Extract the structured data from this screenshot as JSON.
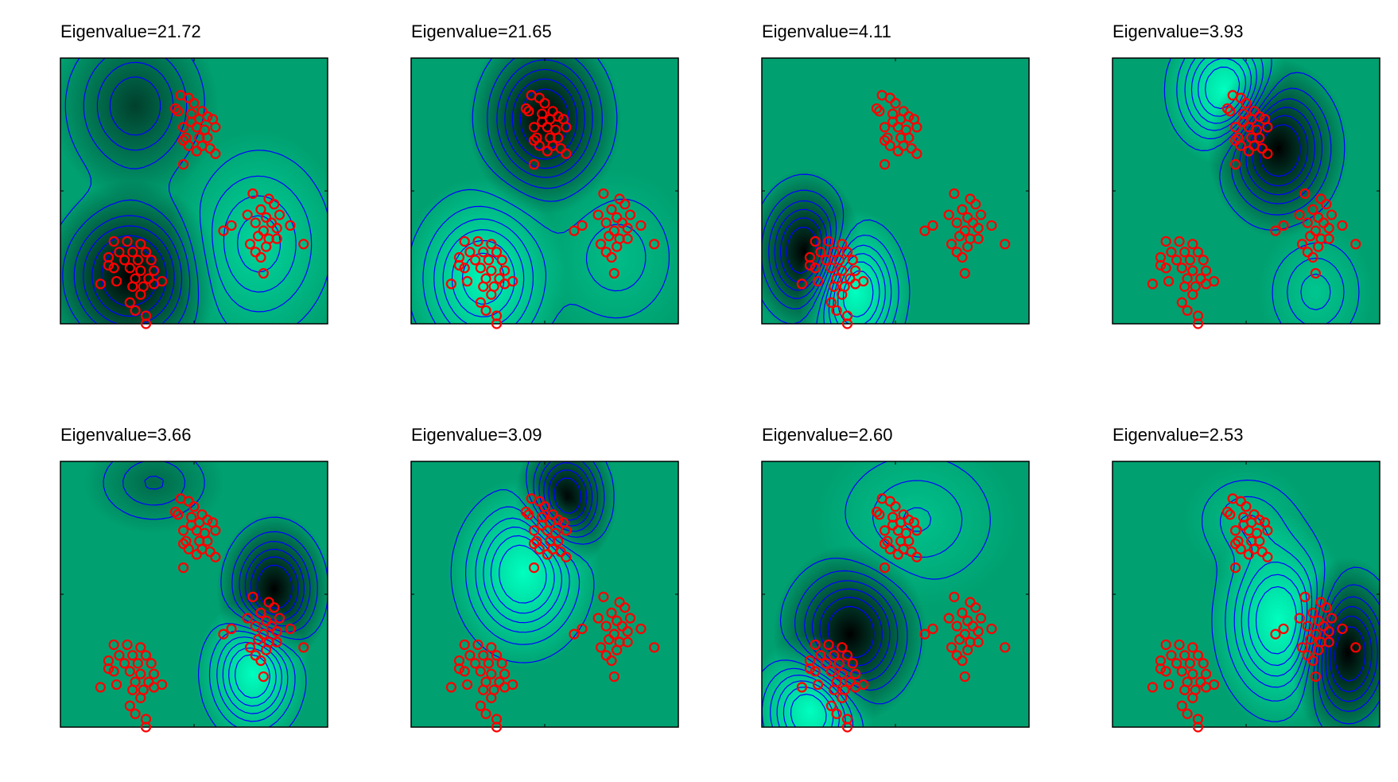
{
  "figure": {
    "background": "#ffffff",
    "colormap": [
      "#000000",
      "#00a070",
      "#00ffc0"
    ],
    "contour_color": "#0000ff",
    "marker_color": "#ff0000"
  },
  "chart_data": [
    {
      "type": "heatmap",
      "title": "Eigenvalue=21.72",
      "eigenvalue": 21.72,
      "xlim": [
        0,
        1
      ],
      "ylim": [
        0,
        1
      ],
      "grid": false,
      "field": [
        {
          "x": 0.28,
          "y": 0.82,
          "a": -0.6,
          "sx": 0.13,
          "sy": 0.15
        },
        {
          "x": 0.26,
          "y": 0.18,
          "a": -1.0,
          "sx": 0.14,
          "sy": 0.15
        },
        {
          "x": 0.74,
          "y": 0.3,
          "a": 0.55,
          "sx": 0.14,
          "sy": 0.18
        }
      ]
    },
    {
      "type": "heatmap",
      "title": "Eigenvalue=21.65",
      "eigenvalue": 21.65,
      "xlim": [
        0,
        1
      ],
      "ylim": [
        0,
        1
      ],
      "grid": false,
      "field": [
        {
          "x": 0.5,
          "y": 0.77,
          "a": -1.0,
          "sx": 0.12,
          "sy": 0.15
        },
        {
          "x": 0.27,
          "y": 0.17,
          "a": 0.9,
          "sx": 0.13,
          "sy": 0.16
        },
        {
          "x": 0.77,
          "y": 0.25,
          "a": 0.3,
          "sx": 0.12,
          "sy": 0.14
        }
      ]
    },
    {
      "type": "heatmap",
      "title": "Eigenvalue=4.11",
      "eigenvalue": 4.11,
      "xlim": [
        0,
        1
      ],
      "ylim": [
        0,
        1
      ],
      "grid": false,
      "field": [
        {
          "x": 0.16,
          "y": 0.27,
          "a": -1.0,
          "sx": 0.09,
          "sy": 0.13
        },
        {
          "x": 0.35,
          "y": 0.12,
          "a": 1.0,
          "sx": 0.09,
          "sy": 0.13
        }
      ]
    },
    {
      "type": "heatmap",
      "title": "Eigenvalue=3.93",
      "eigenvalue": 3.93,
      "xlim": [
        0,
        1
      ],
      "ylim": [
        0,
        1
      ],
      "grid": false,
      "field": [
        {
          "x": 0.42,
          "y": 0.88,
          "a": 1.0,
          "sx": 0.1,
          "sy": 0.12
        },
        {
          "x": 0.62,
          "y": 0.66,
          "a": -1.0,
          "sx": 0.11,
          "sy": 0.14
        },
        {
          "x": 0.76,
          "y": 0.12,
          "a": 0.4,
          "sx": 0.09,
          "sy": 0.11
        }
      ]
    },
    {
      "type": "heatmap",
      "title": "Eigenvalue=3.66",
      "eigenvalue": 3.66,
      "xlim": [
        0,
        1
      ],
      "ylim": [
        0,
        1
      ],
      "grid": false,
      "field": [
        {
          "x": 0.8,
          "y": 0.52,
          "a": -1.0,
          "sx": 0.09,
          "sy": 0.12
        },
        {
          "x": 0.72,
          "y": 0.2,
          "a": 1.0,
          "sx": 0.09,
          "sy": 0.12
        },
        {
          "x": 0.35,
          "y": 0.92,
          "a": -0.35,
          "sx": 0.11,
          "sy": 0.08
        }
      ]
    },
    {
      "type": "heatmap",
      "title": "Eigenvalue=3.09",
      "eigenvalue": 3.09,
      "xlim": [
        0,
        1
      ],
      "ylim": [
        0,
        1
      ],
      "grid": false,
      "field": [
        {
          "x": 0.58,
          "y": 0.86,
          "a": -1.0,
          "sx": 0.08,
          "sy": 0.11
        },
        {
          "x": 0.42,
          "y": 0.58,
          "a": 1.0,
          "sx": 0.12,
          "sy": 0.15
        }
      ]
    },
    {
      "type": "heatmap",
      "title": "Eigenvalue=2.60",
      "eigenvalue": 2.6,
      "xlim": [
        0,
        1
      ],
      "ylim": [
        0,
        1
      ],
      "grid": false,
      "field": [
        {
          "x": 0.33,
          "y": 0.35,
          "a": -1.0,
          "sx": 0.12,
          "sy": 0.14
        },
        {
          "x": 0.18,
          "y": 0.06,
          "a": 1.0,
          "sx": 0.1,
          "sy": 0.12
        },
        {
          "x": 0.58,
          "y": 0.78,
          "a": 0.35,
          "sx": 0.16,
          "sy": 0.14
        }
      ]
    },
    {
      "type": "heatmap",
      "title": "Eigenvalue=2.53",
      "eigenvalue": 2.53,
      "xlim": [
        0,
        1
      ],
      "ylim": [
        0,
        1
      ],
      "grid": false,
      "field": [
        {
          "x": 0.62,
          "y": 0.4,
          "a": 1.0,
          "sx": 0.11,
          "sy": 0.17
        },
        {
          "x": 0.88,
          "y": 0.28,
          "a": -1.0,
          "sx": 0.09,
          "sy": 0.15
        },
        {
          "x": 0.5,
          "y": 0.78,
          "a": 0.3,
          "sx": 0.1,
          "sy": 0.09
        }
      ]
    }
  ],
  "points": [
    [
      0.45,
      0.86
    ],
    [
      0.48,
      0.85
    ],
    [
      0.44,
      0.8
    ],
    [
      0.5,
      0.83
    ],
    [
      0.53,
      0.8
    ],
    [
      0.55,
      0.78
    ],
    [
      0.49,
      0.76
    ],
    [
      0.51,
      0.74
    ],
    [
      0.47,
      0.7
    ],
    [
      0.52,
      0.7
    ],
    [
      0.54,
      0.73
    ],
    [
      0.57,
      0.77
    ],
    [
      0.58,
      0.74
    ],
    [
      0.55,
      0.7
    ],
    [
      0.46,
      0.69
    ],
    [
      0.48,
      0.67
    ],
    [
      0.56,
      0.66
    ],
    [
      0.51,
      0.65
    ],
    [
      0.43,
      0.81
    ],
    [
      0.49,
      0.79
    ],
    [
      0.52,
      0.77
    ],
    [
      0.46,
      0.74
    ],
    [
      0.53,
      0.67
    ],
    [
      0.46,
      0.6
    ],
    [
      0.58,
      0.64
    ],
    [
      0.72,
      0.49
    ],
    [
      0.78,
      0.47
    ],
    [
      0.8,
      0.45
    ],
    [
      0.75,
      0.43
    ],
    [
      0.77,
      0.4
    ],
    [
      0.73,
      0.38
    ],
    [
      0.79,
      0.38
    ],
    [
      0.81,
      0.36
    ],
    [
      0.76,
      0.35
    ],
    [
      0.74,
      0.33
    ],
    [
      0.78,
      0.32
    ],
    [
      0.71,
      0.3
    ],
    [
      0.73,
      0.27
    ],
    [
      0.75,
      0.25
    ],
    [
      0.81,
      0.32
    ],
    [
      0.77,
      0.29
    ],
    [
      0.7,
      0.41
    ],
    [
      0.64,
      0.37
    ],
    [
      0.61,
      0.35
    ],
    [
      0.91,
      0.3
    ],
    [
      0.86,
      0.37
    ],
    [
      0.82,
      0.41
    ],
    [
      0.76,
      0.19
    ],
    [
      0.2,
      0.31
    ],
    [
      0.25,
      0.31
    ],
    [
      0.3,
      0.3
    ],
    [
      0.22,
      0.27
    ],
    [
      0.27,
      0.27
    ],
    [
      0.32,
      0.27
    ],
    [
      0.18,
      0.25
    ],
    [
      0.24,
      0.24
    ],
    [
      0.29,
      0.24
    ],
    [
      0.34,
      0.24
    ],
    [
      0.2,
      0.21
    ],
    [
      0.26,
      0.21
    ],
    [
      0.3,
      0.2
    ],
    [
      0.35,
      0.2
    ],
    [
      0.28,
      0.17
    ],
    [
      0.33,
      0.17
    ],
    [
      0.21,
      0.16
    ],
    [
      0.15,
      0.15
    ],
    [
      0.27,
      0.14
    ],
    [
      0.31,
      0.14
    ],
    [
      0.35,
      0.15
    ],
    [
      0.26,
      0.08
    ],
    [
      0.28,
      0.05
    ],
    [
      0.32,
      0.03
    ],
    [
      0.3,
      0.11
    ],
    [
      0.38,
      0.16
    ],
    [
      0.32,
      0.0
    ],
    [
      0.18,
      0.22
    ]
  ]
}
